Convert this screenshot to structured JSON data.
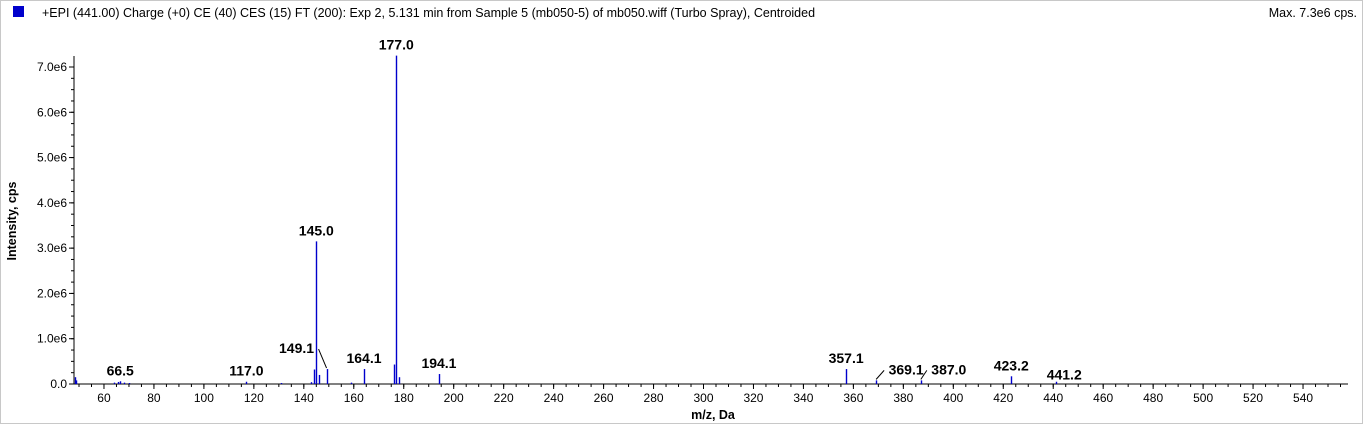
{
  "header": {
    "title": "+EPI (441.00) Charge (+0) CE (40) CES (15) FT (200): Exp 2, 5.131 min from Sample 5 (mb050-5) of mb050.wiff (Turbo Spray), Centroided",
    "max_label": "Max. 7.3e6 cps.",
    "series_color": "#0000cc"
  },
  "chart_data": {
    "type": "bar",
    "title": "+EPI (441.00) Charge (+0) CE (40) CES (15) FT (200): Exp 2, 5.131 min from Sample 5 (mb050-5) of mb050.wiff (Turbo Spray), Centroided",
    "xlabel": "m/z, Da",
    "ylabel": "Intensity, cps",
    "xlim": [
      48,
      558
    ],
    "ylim": [
      0,
      7300000
    ],
    "x_ticks": [
      60,
      80,
      100,
      120,
      140,
      160,
      180,
      200,
      220,
      240,
      260,
      280,
      300,
      320,
      340,
      360,
      380,
      400,
      420,
      440,
      460,
      480,
      500,
      520,
      540
    ],
    "x_tick_labels": [
      "60",
      "80",
      "100",
      "120",
      "140",
      "160",
      "180",
      "200",
      "220",
      "240",
      "260",
      "280",
      "300",
      "320",
      "340",
      "360",
      "380",
      "400",
      "420",
      "440",
      "460",
      "480",
      "500",
      "520",
      "540"
    ],
    "y_ticks": [
      0,
      1000000,
      2000000,
      3000000,
      4000000,
      5000000,
      6000000,
      7000000
    ],
    "y_tick_labels": [
      "0.0",
      "1.0e6",
      "2.0e6",
      "3.0e6",
      "4.0e6",
      "5.0e6",
      "6.0e6",
      "7.0e6"
    ],
    "grid": false,
    "series_color": "#0000cc",
    "peaks": [
      {
        "mz": 48.5,
        "intensity": 150000
      },
      {
        "mz": 49.0,
        "intensity": 80000
      },
      {
        "mz": 64.0,
        "intensity": 30000
      },
      {
        "mz": 65.5,
        "intensity": 45000
      },
      {
        "mz": 66.5,
        "intensity": 60000
      },
      {
        "mz": 68.0,
        "intensity": 30000
      },
      {
        "mz": 70.0,
        "intensity": 20000
      },
      {
        "mz": 117.0,
        "intensity": 50000
      },
      {
        "mz": 131.0,
        "intensity": 20000
      },
      {
        "mz": 143.0,
        "intensity": 40000
      },
      {
        "mz": 144.0,
        "intensity": 320000
      },
      {
        "mz": 145.0,
        "intensity": 3150000
      },
      {
        "mz": 146.0,
        "intensity": 200000
      },
      {
        "mz": 149.1,
        "intensity": 330000
      },
      {
        "mz": 159.0,
        "intensity": 30000
      },
      {
        "mz": 164.1,
        "intensity": 330000
      },
      {
        "mz": 176.0,
        "intensity": 430000
      },
      {
        "mz": 177.0,
        "intensity": 7250000
      },
      {
        "mz": 178.0,
        "intensity": 150000
      },
      {
        "mz": 194.1,
        "intensity": 220000
      },
      {
        "mz": 357.1,
        "intensity": 330000
      },
      {
        "mz": 369.1,
        "intensity": 80000
      },
      {
        "mz": 387.0,
        "intensity": 80000
      },
      {
        "mz": 423.2,
        "intensity": 170000
      },
      {
        "mz": 441.2,
        "intensity": 50000
      }
    ],
    "annotations": [
      {
        "label": "66.5",
        "mz": 66.5
      },
      {
        "label": "117.0",
        "mz": 117.0
      },
      {
        "label": "149.1",
        "mz": 149.1
      },
      {
        "label": "145.0",
        "mz": 145.0
      },
      {
        "label": "164.1",
        "mz": 164.1
      },
      {
        "label": "177.0",
        "mz": 177.0
      },
      {
        "label": "194.1",
        "mz": 194.1
      },
      {
        "label": "357.1",
        "mz": 357.1
      },
      {
        "label": "369.1",
        "mz": 369.1
      },
      {
        "label": "387.0",
        "mz": 387.0
      },
      {
        "label": "423.2",
        "mz": 423.2
      },
      {
        "label": "441.2",
        "mz": 441.2
      }
    ]
  }
}
